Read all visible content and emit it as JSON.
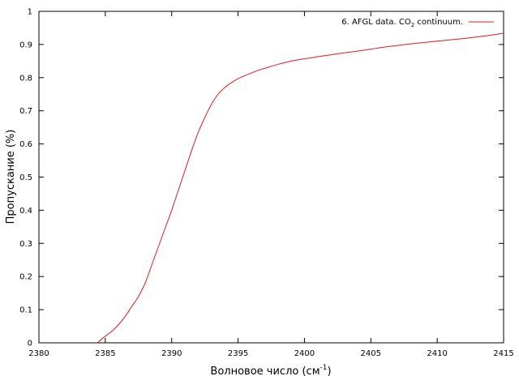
{
  "chart_data": {
    "type": "line",
    "xlabel": "Волновое число (см",
    "xlabel_sup": "-1",
    "xlabel_tail": ")",
    "ylabel": "Пропускание (%)",
    "xlim": [
      2380,
      2415
    ],
    "ylim": [
      0,
      1
    ],
    "xticks": [
      "2380",
      "2385",
      "2390",
      "2395",
      "2400",
      "2405",
      "2410",
      "2415"
    ],
    "yticks": [
      "0",
      "0.1",
      "0.2",
      "0.3",
      "0.4",
      "0.5",
      "0.6",
      "0.7",
      "0.8",
      "0.9",
      "1"
    ],
    "grid": false,
    "legend_position": "top-right",
    "series": [
      {
        "name_prefix": "6. AFGL data. CO",
        "name_sub": "2",
        "name_suffix": " continuum.",
        "color": "#e41a1c",
        "x": [
          2384.4,
          2385.0,
          2385.5,
          2386.0,
          2386.5,
          2387.0,
          2387.5,
          2388.0,
          2388.5,
          2389.0,
          2389.5,
          2390.0,
          2390.5,
          2391.0,
          2391.5,
          2392.0,
          2392.5,
          2393.0,
          2393.5,
          2394.0,
          2394.5,
          2395.0,
          2395.5,
          2396.0,
          2396.5,
          2397.0,
          2398.0,
          2399.0,
          2400.0,
          2401.0,
          2402.0,
          2403.0,
          2404.0,
          2405.0,
          2406.0,
          2407.0,
          2408.0,
          2409.0,
          2410.0,
          2411.0,
          2412.0,
          2413.0,
          2414.0,
          2415.0
        ],
        "y": [
          0.0,
          0.02,
          0.035,
          0.055,
          0.08,
          0.11,
          0.14,
          0.18,
          0.235,
          0.29,
          0.345,
          0.4,
          0.46,
          0.52,
          0.58,
          0.635,
          0.68,
          0.72,
          0.75,
          0.77,
          0.785,
          0.797,
          0.806,
          0.814,
          0.822,
          0.828,
          0.84,
          0.85,
          0.857,
          0.863,
          0.869,
          0.875,
          0.88,
          0.886,
          0.892,
          0.897,
          0.902,
          0.906,
          0.91,
          0.914,
          0.918,
          0.923,
          0.928,
          0.934
        ]
      }
    ]
  }
}
